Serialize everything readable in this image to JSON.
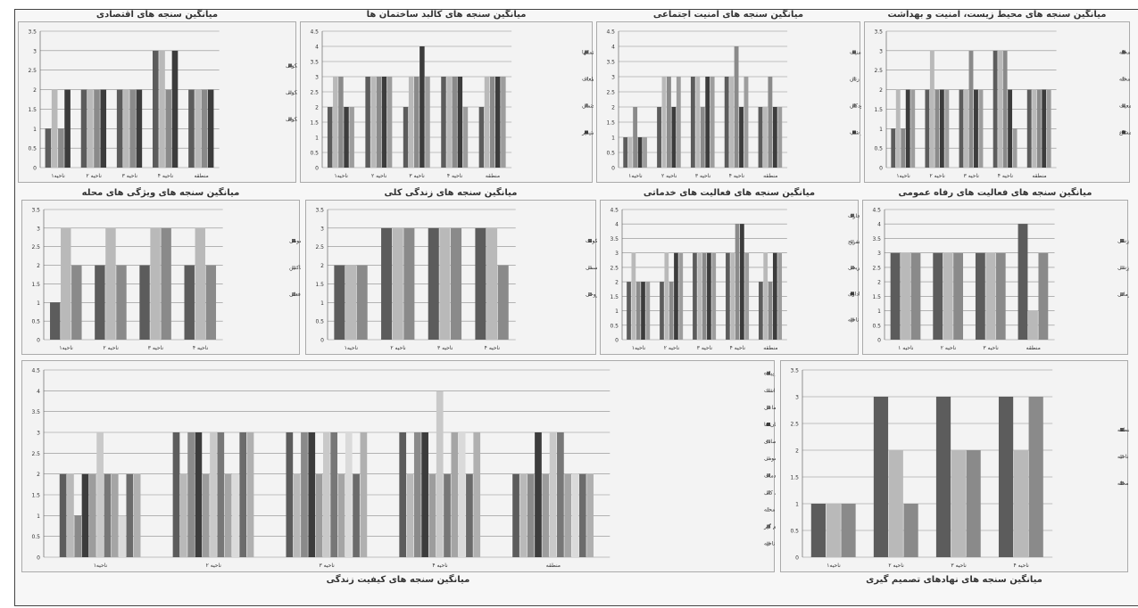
{
  "page": {
    "title": "میانگین سنجه های کیفیت زندگی"
  },
  "colors": {
    "s0": "#5c5c5c",
    "s1": "#b9b9b9",
    "s2": "#8a8a8a",
    "s3": "#3c3c3c",
    "s4": "#9d9d9d",
    "s5": "#c9c9c9",
    "s6": "#777777",
    "s7": "#a5a5a5",
    "s8": "#dadada",
    "s9": "#6b6b6b",
    "s10": "#b0b0b0",
    "grid": "#8c8c8c",
    "panel_bg": "#f3f3f3"
  },
  "chart_data": [
    {
      "id": "economic",
      "type": "bar",
      "title": "میانگین سنجه های اقتصادی",
      "ylim": [
        0,
        3.5
      ],
      "yticks": [
        0,
        0.5,
        1,
        1.5,
        2,
        2.5,
        3,
        3.5
      ],
      "categories": [
        "ناحیه۱",
        "ناحیه ۲",
        "ناحیه ۳",
        "ناحیه ۴",
        "منطقه"
      ],
      "series": [
        {
          "name": "قیمت ساختمانهای مسکونی",
          "values": [
            1,
            2,
            2,
            3,
            2
          ]
        },
        {
          "name": "اجاره بهای ساختمانهای مسکونی",
          "values": [
            2,
            2,
            2,
            3,
            2
          ]
        },
        {
          "name": "میزان استطاعت خرید ساختمانهای مسکونی",
          "values": [
            1,
            2,
            2,
            2,
            2
          ]
        },
        {
          "name": "",
          "values": [
            2,
            2,
            2,
            3,
            2
          ]
        }
      ]
    },
    {
      "id": "building",
      "type": "bar",
      "title": "میانگین سنجه های کالبد ساختمان ها",
      "ylim": [
        0,
        4.5
      ],
      "yticks": [
        0,
        0.5,
        1,
        1.5,
        2,
        2.5,
        3,
        3.5,
        4,
        4.5
      ],
      "categories": [
        "ناحیه۱",
        "ناحیه ۲",
        "ناحیه ۳",
        "ناحیه ۴",
        "منطقه"
      ],
      "series": [
        {
          "name": "کیفیت ساختمانها",
          "values": [
            2,
            3,
            2,
            3,
            2
          ]
        },
        {
          "name": "دوام قطعات",
          "values": [
            3,
            3,
            3,
            3,
            3
          ]
        },
        {
          "name": "تسهیلات و تأسیسات کافی و مناسب در داخل ساختمان",
          "values": [
            3,
            3,
            3,
            3,
            3
          ]
        },
        {
          "name": "ساختمانهای زیستپذیر",
          "values": [
            2,
            3,
            4,
            3,
            3
          ]
        },
        {
          "name": "",
          "values": [
            2,
            3,
            3,
            2,
            3
          ]
        }
      ]
    },
    {
      "id": "social_security",
      "type": "bar",
      "title": "میانگین سنجه های امنیت اجتماعی",
      "ylim": [
        0,
        4.5
      ],
      "yticks": [
        0,
        0.5,
        1,
        1.5,
        2,
        2.5,
        3,
        3.5,
        4,
        4.5
      ],
      "categories": [
        "ناحیه۱",
        "ناحیه ۲",
        "ناحیه ۳",
        "ناحیه ۴",
        "منطقه"
      ],
      "series": [
        {
          "name": "رضایت از میزان امنیت",
          "values": [
            1,
            2,
            3,
            3,
            2
          ]
        },
        {
          "name": "امنیت زنان",
          "values": [
            1,
            3,
            3,
            3,
            2
          ]
        },
        {
          "name": "امنیت کودکان",
          "values": [
            2,
            3,
            2,
            4,
            3
          ]
        },
        {
          "name": "امنیت در شب",
          "values": [
            1,
            2,
            3,
            2,
            2
          ]
        },
        {
          "name": "",
          "values": [
            1,
            3,
            3,
            3,
            2
          ]
        }
      ]
    },
    {
      "id": "environment",
      "type": "bar",
      "title": "میانگین سنجه های محیط زیست، امنیت و بهداشت",
      "ylim": [
        0,
        3.5
      ],
      "yticks": [
        0,
        0.5,
        1,
        1.5,
        2,
        2.5,
        3,
        3.5
      ],
      "categories": [
        "ناحیه۱",
        "ناحیه ۲",
        "ناحیه ۳",
        "ناحیه ۴",
        "منطقه"
      ],
      "series": [
        {
          "name": "پاکیزگی و بهداشت محله",
          "values": [
            1,
            2,
            2,
            3,
            2
          ]
        },
        {
          "name": "امنیت و آسایش در محله",
          "values": [
            2,
            3,
            2,
            3,
            2
          ]
        },
        {
          "name": "عدم ازدحام جمعیت",
          "values": [
            1,
            2,
            3,
            3,
            2
          ]
        },
        {
          "name": "وجود نظارت بر فضاهای عمومی و مشاع",
          "values": [
            2,
            2,
            2,
            2,
            2
          ]
        },
        {
          "name": "",
          "values": [
            2,
            2,
            2,
            1,
            2
          ]
        }
      ]
    },
    {
      "id": "neighborhood",
      "type": "bar",
      "title": "میانگین سنجه های ویژگی های محله",
      "ylim": [
        0,
        3.5
      ],
      "yticks": [
        0,
        0.5,
        1,
        1.5,
        2,
        2.5,
        3,
        3.5
      ],
      "categories": [
        "ناحیه۱",
        "ناحیه ۲",
        "ناحیه ۳",
        "ناحیه ۴"
      ],
      "series": [
        {
          "name": "وجود نهادهای رفاه عمومی",
          "values": [
            1,
            2,
            2,
            2
          ]
        },
        {
          "name": "روابط اجتماعی و همبستگی ساکنین",
          "values": [
            3,
            3,
            3,
            3
          ]
        },
        {
          "name": "تمایل به ادامه سکونت در محله فعلی",
          "values": [
            2,
            2,
            3,
            2
          ]
        }
      ]
    },
    {
      "id": "life",
      "type": "bar",
      "title": "میانگین سنجه های زندگی کلی",
      "ylim": [
        0,
        3.5
      ],
      "yticks": [
        0,
        0.5,
        1,
        1.5,
        2,
        2.5,
        3,
        3.5
      ],
      "categories": [
        "ناحیه۱",
        "ناحیه ۲",
        "ناحیه ۳",
        "ناحیه ۴"
      ],
      "series": [
        {
          "name": "زندگی در محل سکونت",
          "values": [
            2,
            3,
            3,
            3
          ]
        },
        {
          "name": "سلامت جسمی",
          "values": [
            2,
            3,
            3,
            3
          ]
        },
        {
          "name": "آرامش روحی",
          "values": [
            2,
            3,
            3,
            2
          ]
        }
      ]
    },
    {
      "id": "services",
      "type": "bar",
      "title": "میانگین سنجه های فعالیت های خدماتی",
      "ylim": [
        0,
        4.5
      ],
      "yticks": [
        0,
        0.5,
        1,
        1.5,
        2,
        2.5,
        3,
        3.5,
        4,
        4.5
      ],
      "categories": [
        "ناحیه۱",
        "ناحیه ۲",
        "ناحیه ۳",
        "ناحیه ۴",
        "منطقه"
      ],
      "series": [
        {
          "name": "تجارت",
          "values": [
            2,
            2,
            3,
            3,
            2
          ]
        },
        {
          "name": "تفریح",
          "values": [
            3,
            3,
            3,
            3,
            3
          ]
        },
        {
          "name": "فرهنگی - تفریحی",
          "values": [
            2,
            2,
            3,
            4,
            2
          ]
        },
        {
          "name": "اداری",
          "values": [
            2,
            3,
            3,
            4,
            3
          ]
        },
        {
          "name": "جمع ناحیه",
          "values": [
            2,
            3,
            3,
            3,
            3
          ]
        }
      ]
    },
    {
      "id": "welfare",
      "type": "bar",
      "title": "میانگین سنجه های فعالیت های رفاه عمومی",
      "ylim": [
        0,
        4.5
      ],
      "yticks": [
        0,
        0.5,
        1,
        1.5,
        2,
        2.5,
        3,
        3.5,
        4,
        4.5
      ],
      "categories": [
        "ناحیه ۱",
        "ناحیه ۲",
        "ناحیه ۳",
        "منطقه"
      ],
      "series": [
        {
          "name": "آموزشی",
          "values": [
            3,
            3,
            3,
            4
          ]
        },
        {
          "name": "ورزشی",
          "values": [
            3,
            3,
            3,
            1
          ]
        },
        {
          "name": "بهداشتی و درمانی",
          "values": [
            3,
            3,
            3,
            3
          ]
        }
      ]
    },
    {
      "id": "quality",
      "type": "bar",
      "title": "میانگین سنجه های کیفیت زندگی",
      "ylim": [
        0,
        4.5
      ],
      "yticks": [
        0,
        0.5,
        1,
        1.5,
        2,
        2.5,
        3,
        3.5,
        4,
        4.5
      ],
      "categories": [
        "ناحیه۱",
        "ناحیه ۲",
        "ناحیه ۳",
        "ناحیه ۴",
        "منطقه"
      ],
      "series": [
        {
          "name": "استفاده از حمل و نقل شخصی، عمومی و پیاده",
          "values": [
            2,
            3,
            3,
            3,
            2
          ]
        },
        {
          "name": "محیط زیست، امنیت و بهداشت",
          "values": [
            2,
            2,
            2,
            2,
            2
          ]
        },
        {
          "name": "امنیت اجتماعی",
          "values": [
            1,
            3,
            3,
            3,
            2
          ]
        },
        {
          "name": "کالبد ساختمان ها",
          "values": [
            2,
            3,
            3,
            3,
            3
          ]
        },
        {
          "name": "اقتصادی",
          "values": [
            2,
            2,
            2,
            2,
            2
          ]
        },
        {
          "name": "رفاه عمومی",
          "values": [
            3,
            3,
            3,
            4,
            3
          ]
        },
        {
          "name": "خدمات",
          "values": [
            2,
            3,
            3,
            2,
            3
          ]
        },
        {
          "name": "زندگی کلی",
          "values": [
            2,
            2,
            2,
            3,
            2
          ]
        },
        {
          "name": "ویژگی های محله",
          "values": [
            1,
            2,
            3,
            3,
            2
          ]
        },
        {
          "name": "نهادهای تصمیم گیر",
          "values": [
            2,
            3,
            2,
            2,
            2
          ]
        },
        {
          "name": "جمع ناحیه",
          "values": [
            2,
            3,
            3,
            3,
            2
          ]
        }
      ]
    },
    {
      "id": "institutions",
      "type": "bar",
      "title": "میانگین سنجه های نهادهای تصمیم گیری",
      "ylim": [
        0,
        3.5
      ],
      "yticks": [
        0,
        0.5,
        1,
        1.5,
        2,
        2.5,
        3,
        3.5
      ],
      "categories": [
        "ناحیه۱",
        "ناحیه ۲",
        "ناحیه ۳",
        "ناحیه ۴"
      ],
      "series": [
        {
          "name": "شهرداری منطقه",
          "values": [
            1,
            3,
            3,
            3
          ]
        },
        {
          "name": "شهرداری ناحیه",
          "values": [
            1,
            2,
            2,
            2
          ]
        },
        {
          "name": "شورایاری محله",
          "values": [
            1,
            1,
            2,
            3
          ]
        }
      ]
    }
  ]
}
